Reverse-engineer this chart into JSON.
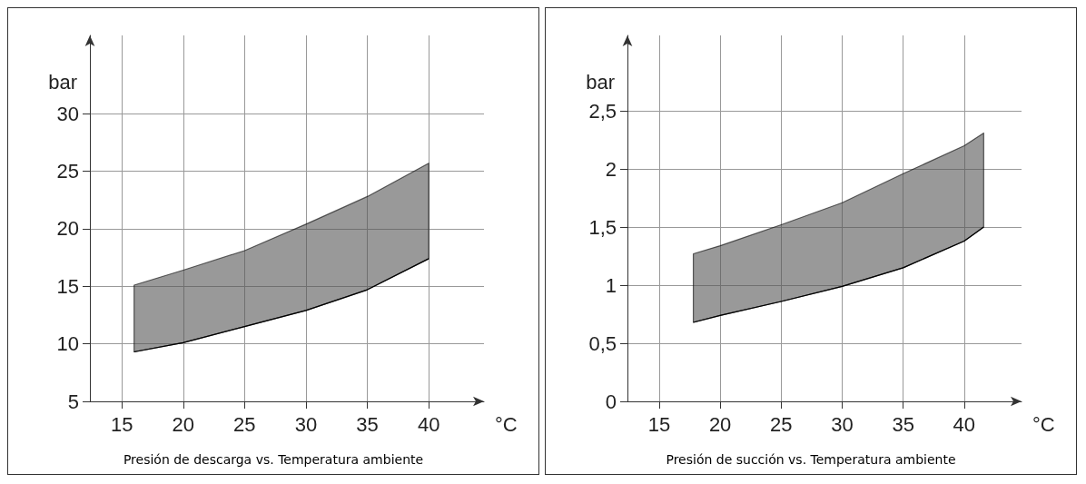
{
  "chart_data": [
    {
      "type": "area",
      "title": "Presión de descarga vs. Temperatura ambiente",
      "xlabel": "°C",
      "ylabel": "bar",
      "xlim": [
        12.4,
        44.5
      ],
      "ylim": [
        5,
        36.8
      ],
      "xticks": [
        15,
        20,
        25,
        30,
        35,
        40
      ],
      "yticks": [
        5,
        10,
        15,
        20,
        25,
        30
      ],
      "grid": true,
      "x": [
        16,
        20,
        25,
        30,
        35,
        40
      ],
      "series": [
        {
          "type": "line",
          "color": "#000000",
          "values": [
            9.3,
            10.1,
            11.5,
            12.9,
            14.7,
            17.4
          ]
        },
        {
          "color": "#555555",
          "values": [
            15.1,
            16.4,
            18.1,
            20.4,
            22.8,
            25.7
          ]
        }
      ]
    },
    {
      "type": "area",
      "title": "Presión de succión vs. Temperatura ambiente",
      "xlabel": "°C",
      "ylabel": "bar",
      "xlim": [
        12.4,
        44.7
      ],
      "ylim": [
        0,
        3.15
      ],
      "xticks": [
        15,
        20,
        25,
        30,
        35,
        40
      ],
      "yticks": [
        0,
        {
          "value": 0.5,
          "label": "0,5"
        },
        1,
        {
          "value": 1.5,
          "label": "1,5"
        },
        2,
        {
          "value": 2.5,
          "label": "2,5"
        }
      ],
      "grid": true,
      "x": [
        17.8,
        20,
        25,
        30,
        35,
        40,
        41.6
      ],
      "series": [
        {
          "type": "line",
          "color": "#000000",
          "values": [
            0.68,
            0.74,
            0.86,
            0.99,
            1.15,
            1.38,
            1.5
          ]
        },
        {
          "color": "#555555",
          "values": [
            1.27,
            1.34,
            1.52,
            1.71,
            1.96,
            2.2,
            2.31
          ]
        }
      ]
    }
  ]
}
